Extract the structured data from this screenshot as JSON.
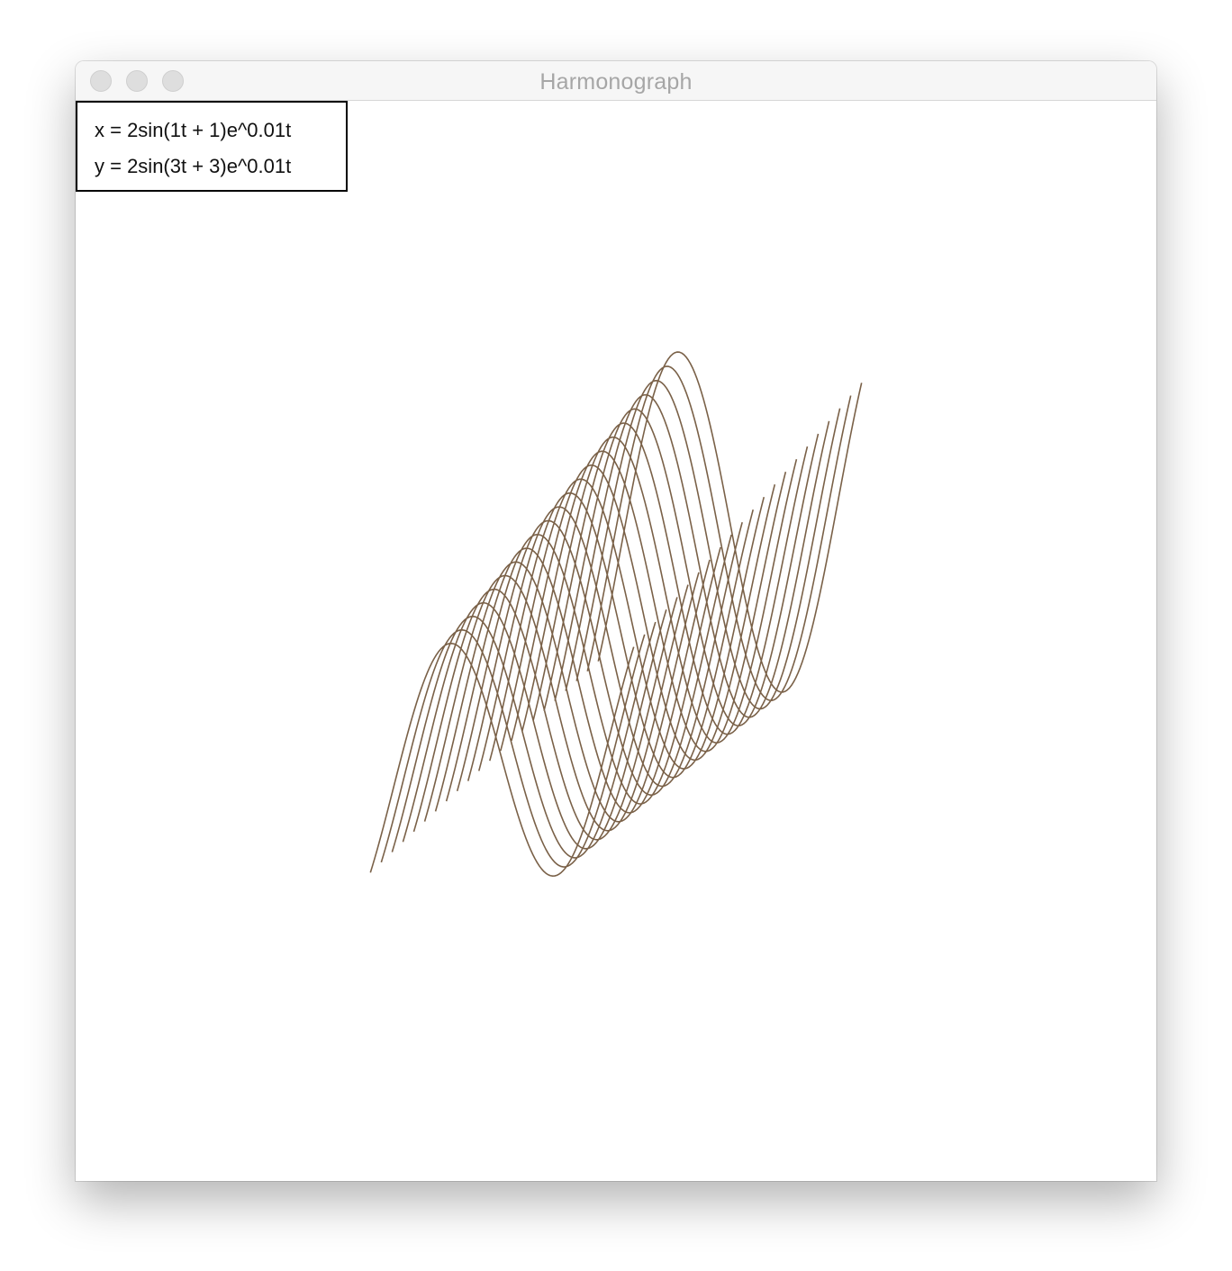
{
  "window": {
    "title": "Harmonograph"
  },
  "legend": {
    "x_equation": "x = 2sin(1t + 1)e^0.01t",
    "y_equation": "y = 2sin(3t + 3)e^0.01t"
  },
  "curve": {
    "color": "#7a6148",
    "x_amplitude": 2,
    "x_frequency": 1,
    "x_phase": 1,
    "y_amplitude": 2,
    "y_frequency": 3,
    "y_phase": 3,
    "damping": 0.01,
    "sweeps": 22
  },
  "colors": {
    "background": "#ffffff",
    "titlebar": "#f6f6f6",
    "title_text": "#a6a6a6"
  }
}
